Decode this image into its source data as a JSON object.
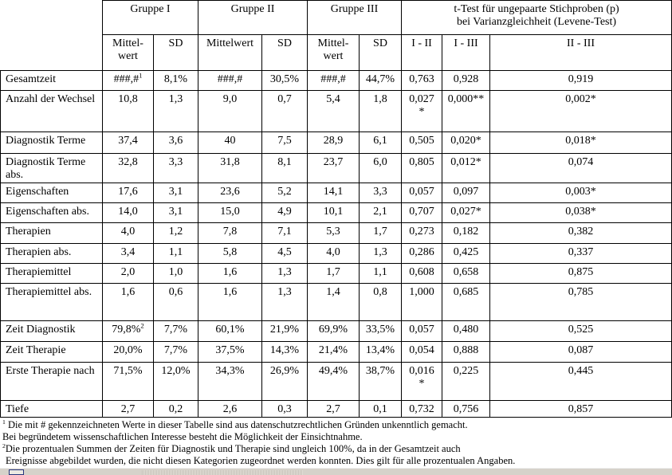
{
  "table": {
    "groups": [
      {
        "label": "Gruppe I"
      },
      {
        "label": "Gruppe II"
      },
      {
        "label": "Gruppe III"
      },
      {
        "label": "t-Test für ungepaarte Stichproben (p)\nbei Varianzgleichheit (Levene-Test)"
      }
    ],
    "sub_headers": [
      "Mittel-\nwert",
      "SD",
      "Mittelwert",
      "SD",
      "Mittel-\nwert",
      "SD",
      "I - II",
      "I - III",
      "II - III"
    ],
    "rows": [
      {
        "label": "Gesamtzeit",
        "cells": [
          {
            "v": "###,#",
            "sup": "1"
          },
          "8,1%",
          "###,#",
          "30,5%",
          "###,#",
          "44,7%",
          "0,763",
          "0,928",
          "0,919"
        ]
      },
      {
        "label": "Anzahl der Wechsel",
        "cells": [
          "10,8",
          "1,3",
          "9,0",
          "0,7",
          "5,4",
          "1,8",
          "0,027\n*",
          "0,000**",
          "0,002*"
        ]
      },
      {
        "label": "Diagnostik Terme",
        "cells": [
          "37,4",
          "3,6",
          "40",
          "7,5",
          "28,9",
          "6,1",
          "0,505",
          "0,020*",
          "0,018*"
        ]
      },
      {
        "label": "Diagnostik Terme abs.",
        "cells": [
          "32,8",
          "3,3",
          "31,8",
          "8,1",
          "23,7",
          "6,0",
          "0,805",
          "0,012*",
          "0,074"
        ]
      },
      {
        "label": "Eigenschaften",
        "cells": [
          "17,6",
          "3,1",
          "23,6",
          "5,2",
          "14,1",
          "3,3",
          "0,057",
          "0,097",
          "0,003*"
        ]
      },
      {
        "label": "Eigenschaften abs.",
        "cells": [
          "14,0",
          "3,1",
          "15,0",
          "4,9",
          "10,1",
          "2,1",
          "0,707",
          "0,027*",
          "0,038*"
        ]
      },
      {
        "label": "Therapien",
        "cells": [
          "4,0",
          "1,2",
          "7,8",
          "7,1",
          "5,3",
          "1,7",
          "0,273",
          "0,182",
          "0,382"
        ]
      },
      {
        "label": "Therapien abs.",
        "cells": [
          "3,4",
          "1,1",
          "5,8",
          "4,5",
          "4,0",
          "1,3",
          "0,286",
          "0,425",
          "0,337"
        ]
      },
      {
        "label": "Therapiemittel",
        "cells": [
          "2,0",
          "1,0",
          "1,6",
          "1,3",
          "1,7",
          "1,1",
          "0,608",
          "0,658",
          "0,875"
        ]
      },
      {
        "label": "Therapiemittel abs.",
        "cells": [
          "1,6",
          "0,6",
          "1,6",
          "1,3",
          "1,4",
          "0,8",
          "1,000",
          "0,685",
          "0,785"
        ]
      },
      {
        "label": "Zeit Diagnostik",
        "cells": [
          {
            "v": "79,8%",
            "sup": "2"
          },
          "7,7%",
          "60,1%",
          "21,9%",
          "69,9%",
          "33,5%",
          "0,057",
          "0,480",
          "0,525"
        ]
      },
      {
        "label": "Zeit Therapie",
        "cells": [
          "20,0%",
          "7,7%",
          "37,5%",
          "14,3%",
          "21,4%",
          "13,4%",
          "0,054",
          "0,888",
          "0,087"
        ]
      },
      {
        "label": "Erste Therapie nach",
        "cells": [
          "71,5%",
          "12,0%",
          "34,3%",
          "26,9%",
          "49,4%",
          "38,7%",
          "0,016\n*",
          "0,225",
          "0,445"
        ]
      },
      {
        "label": "Tiefe",
        "cells": [
          "2,7",
          "0,2",
          "2,6",
          "0,3",
          "2,7",
          "0,1",
          "0,732",
          "0,756",
          "0,857"
        ]
      }
    ]
  },
  "footnotes": [
    {
      "sup": "1",
      "text": " Die mit # gekennzeichneten Werte in dieser Tabelle sind aus datenschutzrechtlichen Gründen unkenntlich gemacht."
    },
    {
      "sup": "",
      "text": "Bei begründetem wissenschaftlichen Interesse besteht die Möglichkeit der Einsichtnahme."
    },
    {
      "sup": "2",
      "text": "Die prozentualen Summen der Zeiten für Diagnostik und Therapie sind ungleich 100%, da in der Gesamtzeit auch"
    },
    {
      "sup": "",
      "text": "Ereignisse abgebildet wurden, die nicht diesen Kategorien zugeordnet werden konnten. Dies gilt für alle prozentualen Angaben."
    }
  ]
}
